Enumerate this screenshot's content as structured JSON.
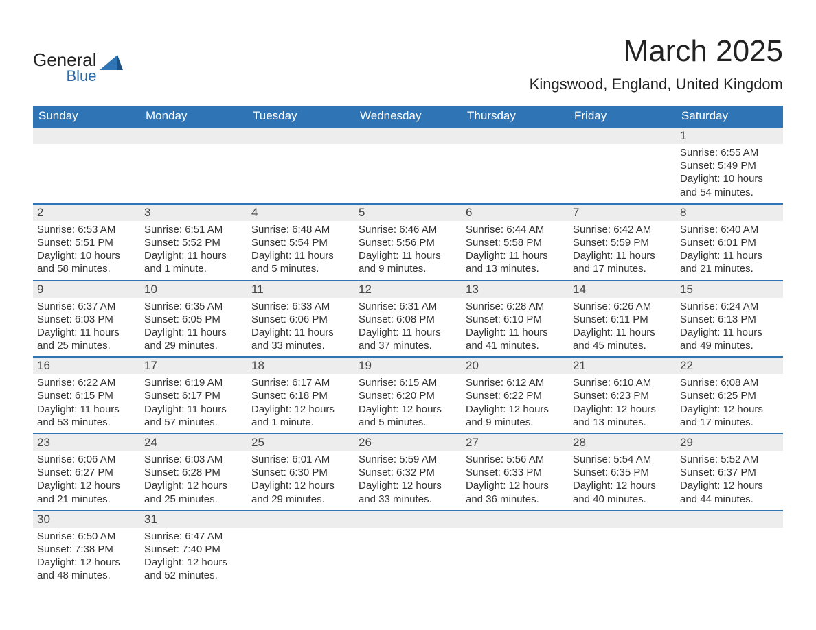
{
  "logo": {
    "line1": "General",
    "line2": "Blue",
    "mark_color": "#2f74b5"
  },
  "title": "March 2025",
  "location": "Kingswood, England, United Kingdom",
  "colors": {
    "header_bg": "#2f74b5",
    "header_text": "#ffffff",
    "daynum_bg": "#ededed",
    "row_divider": "#2f74b5",
    "page_bg": "#ffffff",
    "text": "#333333"
  },
  "fonts": {
    "title_pt": 44,
    "location_pt": 22,
    "weekday_pt": 17,
    "daynum_pt": 17,
    "body_pt": 15
  },
  "weekdays": [
    "Sunday",
    "Monday",
    "Tuesday",
    "Wednesday",
    "Thursday",
    "Friday",
    "Saturday"
  ],
  "leading_blanks": 6,
  "days": [
    {
      "n": "1",
      "sunrise": "Sunrise: 6:55 AM",
      "sunset": "Sunset: 5:49 PM",
      "daylight": "Daylight: 10 hours and 54 minutes."
    },
    {
      "n": "2",
      "sunrise": "Sunrise: 6:53 AM",
      "sunset": "Sunset: 5:51 PM",
      "daylight": "Daylight: 10 hours and 58 minutes."
    },
    {
      "n": "3",
      "sunrise": "Sunrise: 6:51 AM",
      "sunset": "Sunset: 5:52 PM",
      "daylight": "Daylight: 11 hours and 1 minute."
    },
    {
      "n": "4",
      "sunrise": "Sunrise: 6:48 AM",
      "sunset": "Sunset: 5:54 PM",
      "daylight": "Daylight: 11 hours and 5 minutes."
    },
    {
      "n": "5",
      "sunrise": "Sunrise: 6:46 AM",
      "sunset": "Sunset: 5:56 PM",
      "daylight": "Daylight: 11 hours and 9 minutes."
    },
    {
      "n": "6",
      "sunrise": "Sunrise: 6:44 AM",
      "sunset": "Sunset: 5:58 PM",
      "daylight": "Daylight: 11 hours and 13 minutes."
    },
    {
      "n": "7",
      "sunrise": "Sunrise: 6:42 AM",
      "sunset": "Sunset: 5:59 PM",
      "daylight": "Daylight: 11 hours and 17 minutes."
    },
    {
      "n": "8",
      "sunrise": "Sunrise: 6:40 AM",
      "sunset": "Sunset: 6:01 PM",
      "daylight": "Daylight: 11 hours and 21 minutes."
    },
    {
      "n": "9",
      "sunrise": "Sunrise: 6:37 AM",
      "sunset": "Sunset: 6:03 PM",
      "daylight": "Daylight: 11 hours and 25 minutes."
    },
    {
      "n": "10",
      "sunrise": "Sunrise: 6:35 AM",
      "sunset": "Sunset: 6:05 PM",
      "daylight": "Daylight: 11 hours and 29 minutes."
    },
    {
      "n": "11",
      "sunrise": "Sunrise: 6:33 AM",
      "sunset": "Sunset: 6:06 PM",
      "daylight": "Daylight: 11 hours and 33 minutes."
    },
    {
      "n": "12",
      "sunrise": "Sunrise: 6:31 AM",
      "sunset": "Sunset: 6:08 PM",
      "daylight": "Daylight: 11 hours and 37 minutes."
    },
    {
      "n": "13",
      "sunrise": "Sunrise: 6:28 AM",
      "sunset": "Sunset: 6:10 PM",
      "daylight": "Daylight: 11 hours and 41 minutes."
    },
    {
      "n": "14",
      "sunrise": "Sunrise: 6:26 AM",
      "sunset": "Sunset: 6:11 PM",
      "daylight": "Daylight: 11 hours and 45 minutes."
    },
    {
      "n": "15",
      "sunrise": "Sunrise: 6:24 AM",
      "sunset": "Sunset: 6:13 PM",
      "daylight": "Daylight: 11 hours and 49 minutes."
    },
    {
      "n": "16",
      "sunrise": "Sunrise: 6:22 AM",
      "sunset": "Sunset: 6:15 PM",
      "daylight": "Daylight: 11 hours and 53 minutes."
    },
    {
      "n": "17",
      "sunrise": "Sunrise: 6:19 AM",
      "sunset": "Sunset: 6:17 PM",
      "daylight": "Daylight: 11 hours and 57 minutes."
    },
    {
      "n": "18",
      "sunrise": "Sunrise: 6:17 AM",
      "sunset": "Sunset: 6:18 PM",
      "daylight": "Daylight: 12 hours and 1 minute."
    },
    {
      "n": "19",
      "sunrise": "Sunrise: 6:15 AM",
      "sunset": "Sunset: 6:20 PM",
      "daylight": "Daylight: 12 hours and 5 minutes."
    },
    {
      "n": "20",
      "sunrise": "Sunrise: 6:12 AM",
      "sunset": "Sunset: 6:22 PM",
      "daylight": "Daylight: 12 hours and 9 minutes."
    },
    {
      "n": "21",
      "sunrise": "Sunrise: 6:10 AM",
      "sunset": "Sunset: 6:23 PM",
      "daylight": "Daylight: 12 hours and 13 minutes."
    },
    {
      "n": "22",
      "sunrise": "Sunrise: 6:08 AM",
      "sunset": "Sunset: 6:25 PM",
      "daylight": "Daylight: 12 hours and 17 minutes."
    },
    {
      "n": "23",
      "sunrise": "Sunrise: 6:06 AM",
      "sunset": "Sunset: 6:27 PM",
      "daylight": "Daylight: 12 hours and 21 minutes."
    },
    {
      "n": "24",
      "sunrise": "Sunrise: 6:03 AM",
      "sunset": "Sunset: 6:28 PM",
      "daylight": "Daylight: 12 hours and 25 minutes."
    },
    {
      "n": "25",
      "sunrise": "Sunrise: 6:01 AM",
      "sunset": "Sunset: 6:30 PM",
      "daylight": "Daylight: 12 hours and 29 minutes."
    },
    {
      "n": "26",
      "sunrise": "Sunrise: 5:59 AM",
      "sunset": "Sunset: 6:32 PM",
      "daylight": "Daylight: 12 hours and 33 minutes."
    },
    {
      "n": "27",
      "sunrise": "Sunrise: 5:56 AM",
      "sunset": "Sunset: 6:33 PM",
      "daylight": "Daylight: 12 hours and 36 minutes."
    },
    {
      "n": "28",
      "sunrise": "Sunrise: 5:54 AM",
      "sunset": "Sunset: 6:35 PM",
      "daylight": "Daylight: 12 hours and 40 minutes."
    },
    {
      "n": "29",
      "sunrise": "Sunrise: 5:52 AM",
      "sunset": "Sunset: 6:37 PM",
      "daylight": "Daylight: 12 hours and 44 minutes."
    },
    {
      "n": "30",
      "sunrise": "Sunrise: 6:50 AM",
      "sunset": "Sunset: 7:38 PM",
      "daylight": "Daylight: 12 hours and 48 minutes."
    },
    {
      "n": "31",
      "sunrise": "Sunrise: 6:47 AM",
      "sunset": "Sunset: 7:40 PM",
      "daylight": "Daylight: 12 hours and 52 minutes."
    }
  ]
}
